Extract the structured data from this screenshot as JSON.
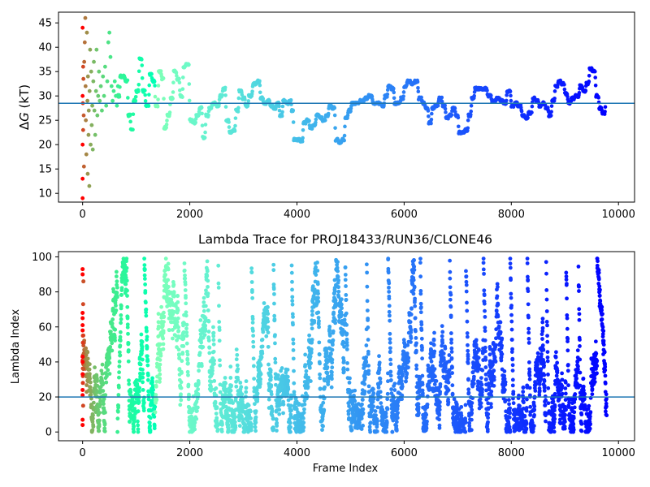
{
  "chart_data": [
    {
      "type": "scatter",
      "title": "",
      "xlabel": "",
      "ylabel": "ΔG (kT)",
      "xlim": [
        -450,
        10300
      ],
      "ylim": [
        8.2,
        47.2
      ],
      "x_ticks": [
        0,
        2000,
        4000,
        6000,
        8000,
        10000
      ],
      "x_tick_labels": [
        "0",
        "2000",
        "4000",
        "6000",
        "8000",
        "10000"
      ],
      "y_ticks": [
        10,
        15,
        20,
        25,
        30,
        35,
        40,
        45
      ],
      "y_tick_labels": [
        "10",
        "15",
        "20",
        "25",
        "30",
        "35",
        "40",
        "45"
      ],
      "reference_line": {
        "y": 28.5,
        "color": "#1f77b4"
      },
      "colormap": "rainbow (red at frame 0 to violet at the last frame)",
      "grid": false,
      "early_scatter": [
        [
          0,
          44
        ],
        [
          0,
          30
        ],
        [
          0,
          20
        ],
        [
          0,
          13
        ],
        [
          5,
          28.5
        ],
        [
          10,
          36
        ],
        [
          0,
          9
        ],
        [
          10,
          23
        ],
        [
          20,
          26
        ],
        [
          25,
          15.5
        ],
        [
          15,
          33.5
        ],
        [
          30,
          37
        ],
        [
          40,
          41
        ],
        [
          50,
          46
        ],
        [
          55,
          32
        ],
        [
          60,
          25
        ],
        [
          70,
          18
        ],
        [
          80,
          43
        ],
        [
          90,
          29
        ],
        [
          95,
          14
        ],
        [
          100,
          34
        ],
        [
          110,
          22
        ],
        [
          115,
          27
        ],
        [
          125,
          11.5
        ],
        [
          130,
          31
        ],
        [
          140,
          39.5
        ],
        [
          150,
          20
        ],
        [
          160,
          35
        ],
        [
          170,
          24
        ],
        [
          180,
          28
        ],
        [
          190,
          19
        ],
        [
          200,
          33
        ],
        [
          210,
          37
        ],
        [
          220,
          27
        ],
        [
          235,
          22
        ],
        [
          250,
          31
        ],
        [
          260,
          39.5
        ],
        [
          275,
          26
        ],
        [
          290,
          30
        ],
        [
          305,
          35
        ],
        [
          320,
          29
        ],
        [
          340,
          32
        ],
        [
          360,
          27
        ],
        [
          380,
          34
        ],
        [
          400,
          30
        ],
        [
          420,
          36
        ],
        [
          440,
          28
        ],
        [
          460,
          33
        ],
        [
          480,
          41
        ],
        [
          500,
          43
        ],
        [
          520,
          38
        ],
        [
          540,
          32
        ],
        [
          560,
          29
        ],
        [
          580,
          31
        ],
        [
          600,
          33
        ],
        [
          620,
          30
        ],
        [
          640,
          28
        ],
        [
          660,
          32
        ]
      ],
      "path_points": [
        [
          650,
          30
        ],
        [
          700,
          34
        ],
        [
          800,
          33
        ],
        [
          850,
          26
        ],
        [
          900,
          23
        ],
        [
          950,
          29
        ],
        [
          1000,
          31
        ],
        [
          1060,
          37.5
        ],
        [
          1120,
          31
        ],
        [
          1180,
          28
        ],
        [
          1250,
          34.5
        ],
        [
          1300,
          33
        ],
        [
          1360,
          28
        ],
        [
          1420,
          35
        ],
        [
          1480,
          33.5
        ],
        [
          1520,
          23.5
        ],
        [
          1580,
          26
        ],
        [
          1640,
          29.5
        ],
        [
          1700,
          35
        ],
        [
          1760,
          33.5
        ],
        [
          1820,
          30
        ],
        [
          1880,
          36
        ],
        [
          1930,
          36.5
        ],
        [
          2000,
          25
        ],
        [
          2060,
          24.5
        ],
        [
          2120,
          26
        ],
        [
          2180,
          27.5
        ],
        [
          2240,
          21.5
        ],
        [
          2300,
          26
        ],
        [
          2360,
          27.5
        ],
        [
          2420,
          28.5
        ],
        [
          2500,
          28
        ],
        [
          2560,
          30
        ],
        [
          2620,
          31.5
        ],
        [
          2680,
          25
        ],
        [
          2740,
          22.5
        ],
        [
          2800,
          23
        ],
        [
          2860,
          27
        ],
        [
          2920,
          31
        ],
        [
          2980,
          29.5
        ],
        [
          3040,
          28
        ],
        [
          3100,
          30
        ],
        [
          3180,
          32.5
        ],
        [
          3260,
          33
        ],
        [
          3320,
          29.5
        ],
        [
          3380,
          28.5
        ],
        [
          3440,
          29
        ],
        [
          3500,
          28
        ],
        [
          3560,
          27.5
        ],
        [
          3620,
          28.5
        ],
        [
          3680,
          26
        ],
        [
          3740,
          29
        ],
        [
          3800,
          28.5
        ],
        [
          3860,
          29
        ],
        [
          3900,
          27
        ],
        [
          3940,
          21
        ],
        [
          4000,
          21
        ],
        [
          4060,
          20.8
        ],
        [
          4120,
          24.5
        ],
        [
          4180,
          25
        ],
        [
          4240,
          23.5
        ],
        [
          4300,
          24
        ],
        [
          4360,
          26
        ],
        [
          4420,
          25.5
        ],
        [
          4480,
          25
        ],
        [
          4540,
          26
        ],
        [
          4600,
          28
        ],
        [
          4660,
          27.5
        ],
        [
          4720,
          21
        ],
        [
          4780,
          20.5
        ],
        [
          4840,
          21
        ],
        [
          4900,
          25.5
        ],
        [
          4960,
          27
        ],
        [
          5020,
          28.5
        ],
        [
          5100,
          28.5
        ],
        [
          5180,
          29
        ],
        [
          5260,
          29.5
        ],
        [
          5340,
          30
        ],
        [
          5420,
          28.5
        ],
        [
          5500,
          28.5
        ],
        [
          5580,
          28
        ],
        [
          5640,
          30
        ],
        [
          5700,
          32
        ],
        [
          5760,
          31.5
        ],
        [
          5820,
          28.5
        ],
        [
          5880,
          28.5
        ],
        [
          5940,
          29.5
        ],
        [
          6000,
          32
        ],
        [
          6060,
          33
        ],
        [
          6130,
          32.5
        ],
        [
          6200,
          33
        ],
        [
          6270,
          29.5
        ],
        [
          6340,
          28.5
        ],
        [
          6400,
          27.5
        ],
        [
          6460,
          24.5
        ],
        [
          6520,
          27.5
        ],
        [
          6580,
          28
        ],
        [
          6650,
          29.5
        ],
        [
          6720,
          28
        ],
        [
          6780,
          25.5
        ],
        [
          6840,
          26
        ],
        [
          6900,
          27.5
        ],
        [
          6960,
          26
        ],
        [
          7020,
          22.5
        ],
        [
          7080,
          22.5
        ],
        [
          7140,
          23
        ],
        [
          7200,
          26
        ],
        [
          7260,
          29.5
        ],
        [
          7320,
          31.5
        ],
        [
          7400,
          31.5
        ],
        [
          7480,
          31.5
        ],
        [
          7560,
          30
        ],
        [
          7640,
          29
        ],
        [
          7720,
          29.5
        ],
        [
          7800,
          29
        ],
        [
          7860,
          28.5
        ],
        [
          7920,
          31
        ],
        [
          8000,
          28
        ],
        [
          8060,
          28.5
        ],
        [
          8120,
          28
        ],
        [
          8200,
          26
        ],
        [
          8260,
          25.5
        ],
        [
          8320,
          26.5
        ],
        [
          8400,
          29.5
        ],
        [
          8460,
          29
        ],
        [
          8520,
          28
        ],
        [
          8580,
          28.5
        ],
        [
          8640,
          27.5
        ],
        [
          8700,
          26
        ],
        [
          8760,
          29
        ],
        [
          8820,
          32
        ],
        [
          8880,
          33
        ],
        [
          8940,
          32.5
        ],
        [
          9000,
          30.5
        ],
        [
          9060,
          28.5
        ],
        [
          9120,
          29.5
        ],
        [
          9200,
          30
        ],
        [
          9280,
          32
        ],
        [
          9340,
          31
        ],
        [
          9400,
          32.5
        ],
        [
          9460,
          35.5
        ],
        [
          9520,
          35
        ],
        [
          9580,
          30
        ],
        [
          9640,
          27.5
        ],
        [
          9700,
          26.5
        ],
        [
          9760,
          28.5
        ]
      ]
    },
    {
      "type": "scatter",
      "title": "Lambda Trace for PROJ18433/RUN36/CLONE46",
      "xlabel": "Frame Index",
      "ylabel": "Lambda Index",
      "xlim": [
        -450,
        10300
      ],
      "ylim": [
        -5,
        103
      ],
      "x_ticks": [
        0,
        2000,
        4000,
        6000,
        8000,
        10000
      ],
      "x_tick_labels": [
        "0",
        "2000",
        "4000",
        "6000",
        "8000",
        "10000"
      ],
      "y_ticks": [
        0,
        20,
        40,
        60,
        80,
        100
      ],
      "y_tick_labels": [
        "0",
        "20",
        "40",
        "60",
        "80",
        "100"
      ],
      "reference_line": {
        "y": 20,
        "color": "#1f77b4"
      },
      "colormap": "rainbow (red at frame 0 to violet at the last frame)",
      "grid": false,
      "frame_range": [
        0,
        9780
      ],
      "lambda_range": [
        0,
        99
      ],
      "sampled_points": 2600,
      "early_points": [
        [
          0,
          93
        ],
        [
          0,
          90
        ],
        [
          0,
          68
        ],
        [
          0,
          65
        ],
        [
          0,
          61
        ],
        [
          0,
          58
        ],
        [
          0,
          43
        ],
        [
          0,
          40
        ],
        [
          0,
          33
        ],
        [
          0,
          24
        ],
        [
          0,
          21
        ],
        [
          0,
          7
        ],
        [
          0,
          4
        ],
        [
          5,
          55
        ],
        [
          5,
          51
        ],
        [
          5,
          28
        ],
        [
          10,
          73
        ],
        [
          10,
          15
        ],
        [
          15,
          86
        ],
        [
          15,
          36
        ]
      ],
      "sweeps": [
        [
          650,
          750,
          1,
          99
        ],
        [
          820,
          880,
          99,
          2
        ],
        [
          1150,
          1250,
          99,
          2
        ],
        [
          1900,
          2000,
          99,
          1
        ],
        [
          2530,
          2580,
          99,
          2
        ],
        [
          3150,
          3220,
          99,
          3
        ],
        [
          3560,
          3620,
          99,
          2
        ],
        [
          3900,
          3960,
          99,
          1
        ],
        [
          4380,
          4450,
          99,
          2
        ],
        [
          4900,
          4970,
          99,
          1
        ],
        [
          5300,
          5360,
          99,
          1
        ],
        [
          5700,
          5780,
          99,
          1
        ],
        [
          6300,
          6360,
          99,
          2
        ],
        [
          6850,
          6920,
          99,
          1
        ],
        [
          7150,
          7220,
          99,
          2
        ],
        [
          7480,
          7550,
          99,
          1
        ],
        [
          7980,
          8050,
          99,
          2
        ],
        [
          8300,
          8360,
          99,
          2
        ],
        [
          8650,
          8700,
          99,
          1
        ],
        [
          9020,
          9080,
          99,
          3
        ],
        [
          9250,
          9300,
          99,
          2
        ],
        [
          9600,
          9700,
          99,
          60
        ]
      ]
    }
  ]
}
